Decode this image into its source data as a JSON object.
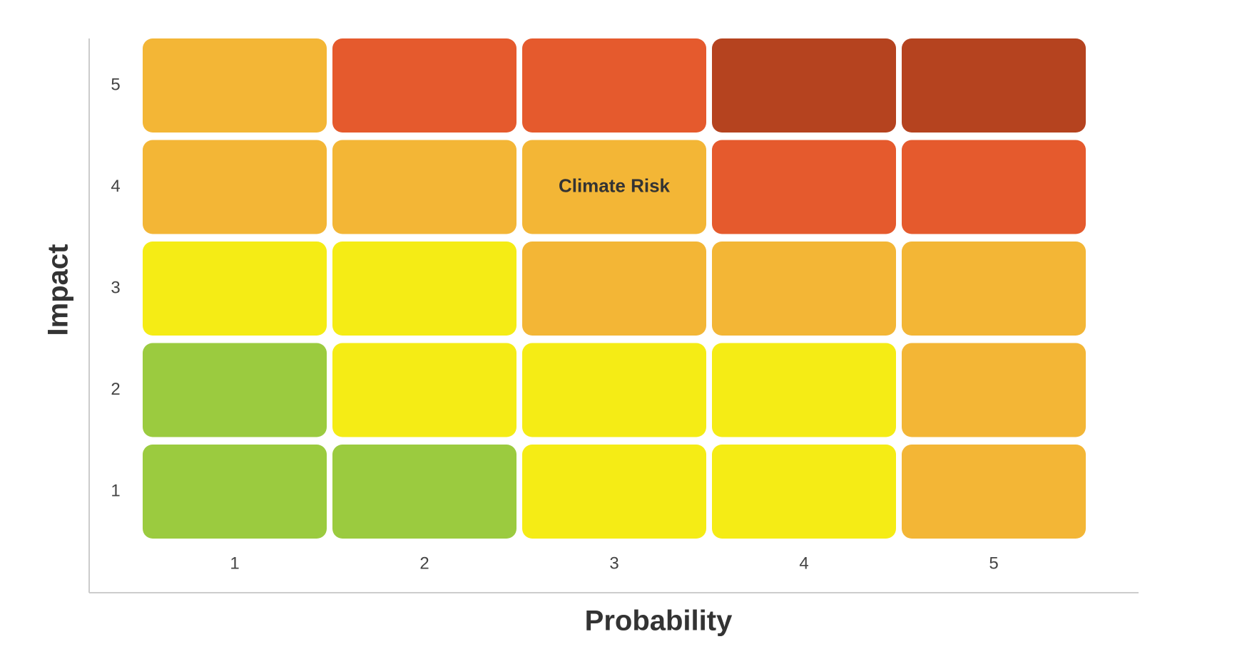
{
  "chart_data": {
    "type": "heatmap",
    "x_label": "Probability",
    "y_label": "Impact",
    "x": [
      1,
      2,
      3,
      4,
      5
    ],
    "y": [
      1,
      2,
      3,
      4,
      5
    ],
    "colors": [
      [
        "#9bcb3f",
        "#9bcb3f",
        "#f5ec15",
        "#f5ec15",
        "#f3b636"
      ],
      [
        "#9bcb3f",
        "#f5ec15",
        "#f5ec15",
        "#f5ec15",
        "#f3b636"
      ],
      [
        "#f5ec15",
        "#f5ec15",
        "#f3b636",
        "#f3b636",
        "#f3b636"
      ],
      [
        "#f3b636",
        "#f3b636",
        "#f3b636",
        "#e55a2d",
        "#e55a2d"
      ],
      [
        "#f3b636",
        "#e55a2d",
        "#e55a2d",
        "#b5431f",
        "#b5431f"
      ]
    ],
    "annotations": [
      {
        "text": "Climate Risk",
        "x": 3,
        "y": 4
      }
    ]
  }
}
